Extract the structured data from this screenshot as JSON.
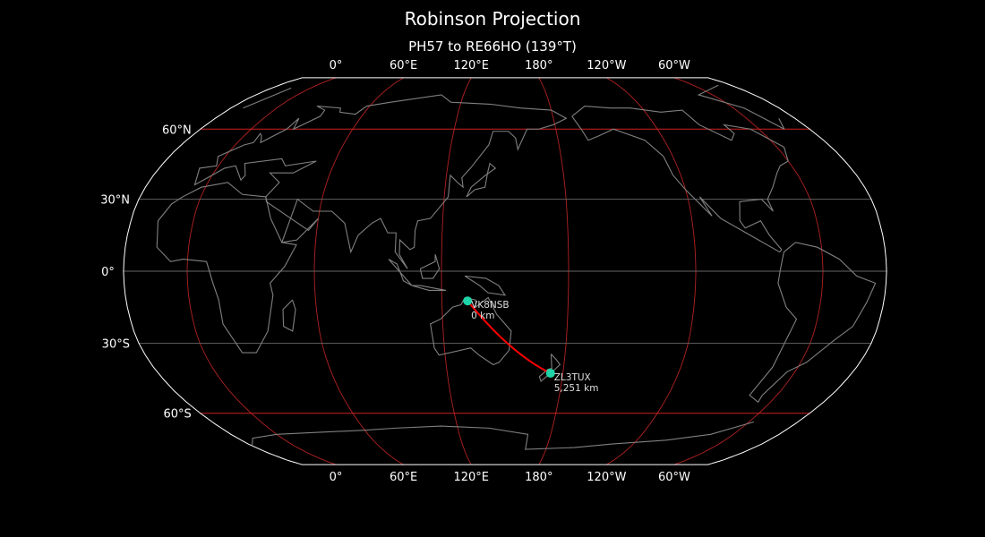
{
  "title": "Robinson Projection",
  "subtitle": "PH57 to RE66HO (139°T)",
  "map": {
    "projection": "robinson",
    "central_longitude": 150,
    "lon_labels": [
      "0°",
      "60°E",
      "120°E",
      "180°",
      "120°W",
      "60°W"
    ],
    "lon_label_values": [
      0,
      60,
      120,
      180,
      -120,
      -60
    ],
    "lat_labels": [
      "60°N",
      "30°N",
      "0°",
      "30°S",
      "60°S"
    ],
    "lat_label_values": [
      60,
      30,
      0,
      -30,
      -60
    ],
    "colors": {
      "background": "#000000",
      "coastline": "#808080",
      "outline": "#ffffff",
      "meridian": "#b22222",
      "parallel_major": "#cc2222",
      "parallel_minor": "#666666",
      "path": "#ff0000",
      "marker": "#1dd3a7",
      "label": "#dddddd"
    }
  },
  "stations": [
    {
      "call": "VK8NSB",
      "distance": "0 km",
      "lat": -12.4,
      "lon": 132.2
    },
    {
      "call": "ZL3TUX",
      "distance": "5,251 km",
      "lat": -42.6,
      "lon": 173.6
    }
  ]
}
